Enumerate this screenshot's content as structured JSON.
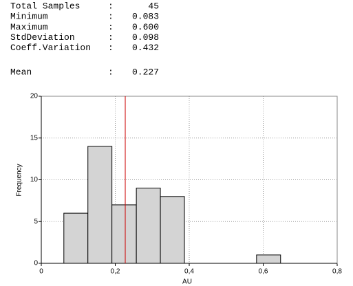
{
  "stats": [
    {
      "label": "Total Samples",
      "value": "45"
    },
    {
      "label": "Minimum",
      "value": "0.083"
    },
    {
      "label": "Maximum",
      "value": "0.600"
    },
    {
      "label": "StdDeviation",
      "value": "0.098"
    },
    {
      "label": "Coeff.Variation",
      "value": "0.432"
    }
  ],
  "separator": ":",
  "mean": {
    "label": "Mean",
    "value": 0.227,
    "color": "#cc0000"
  },
  "chart_data": {
    "type": "histogram",
    "bins": [
      0.061,
      0.126,
      0.191,
      0.257,
      0.322,
      0.387,
      0.452,
      0.517,
      0.582,
      0.647
    ],
    "values": [
      6,
      14,
      7,
      9,
      8,
      0,
      0,
      0,
      1
    ],
    "color": "#d4d4d4",
    "xlabel": "AU",
    "ylabel": "Frequency",
    "xlim": [
      0,
      0.8
    ],
    "xticks": [
      0,
      {
        "value": 0.2,
        "label": "0,2"
      },
      {
        "value": 0.4,
        "label": "0,4"
      },
      {
        "value": 0.6,
        "label": "0,6"
      },
      {
        "value": 0.8,
        "label": "0,8"
      }
    ],
    "ylim": [
      0,
      20
    ],
    "yticks": [
      0,
      5,
      10,
      15,
      20
    ],
    "grid": true
  }
}
